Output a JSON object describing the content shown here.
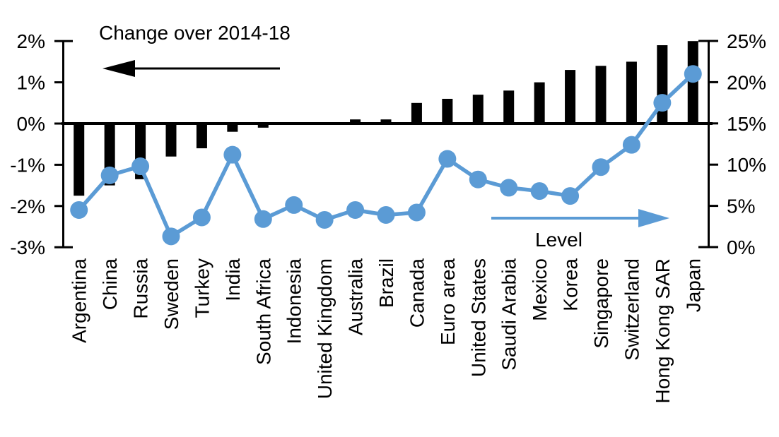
{
  "chart_data": {
    "type": "bar",
    "subtype": "combo-bar-line-dual-axis",
    "title": "Change over 2014-18",
    "line_label": "Level",
    "categories": [
      "Argentina",
      "China",
      "Russia",
      "Sweden",
      "Turkey",
      "India",
      "South Africa",
      "Indonesia",
      "United Kingdom",
      "Australia",
      "Brazil",
      "Canada",
      "Euro area",
      "United States",
      "Saudi Arabia",
      "Mexico",
      "Korea",
      "Singapore",
      "Switzerland",
      "Hong Kong SAR",
      "Japan"
    ],
    "series": [
      {
        "name": "Change over 2014-18",
        "type": "bar",
        "axis": "left",
        "color": "#000000",
        "values": [
          -1.75,
          -1.5,
          -1.35,
          -0.8,
          -0.6,
          -0.2,
          -0.1,
          0,
          0,
          0.1,
          0.1,
          0.5,
          0.6,
          0.7,
          0.8,
          1.0,
          1.3,
          1.4,
          1.5,
          1.9,
          2.0
        ]
      },
      {
        "name": "Level",
        "type": "line",
        "axis": "right",
        "color": "#5B9BD5",
        "values": [
          4.5,
          8.7,
          9.8,
          1.3,
          3.6,
          11.2,
          3.4,
          5.1,
          3.3,
          4.5,
          3.9,
          4.2,
          10.7,
          8.2,
          7.2,
          6.8,
          6.2,
          9.7,
          12.4,
          17.5,
          21.0
        ]
      }
    ],
    "left_axis": {
      "min": -3,
      "max": 2,
      "ticks": [
        {
          "label": "2%",
          "value": 2
        },
        {
          "label": "1%",
          "value": 1
        },
        {
          "label": "0%",
          "value": 0
        },
        {
          "label": "-1%",
          "value": -1
        },
        {
          "label": "-2%",
          "value": -2
        },
        {
          "label": "-3%",
          "value": -3
        }
      ]
    },
    "right_axis": {
      "min": 0,
      "max": 25,
      "ticks": [
        {
          "label": "25%",
          "value": 25
        },
        {
          "label": "20%",
          "value": 20
        },
        {
          "label": "15%",
          "value": 15
        },
        {
          "label": "10%",
          "value": 10
        },
        {
          "label": "5%",
          "value": 5
        },
        {
          "label": "0%",
          "value": 0
        }
      ]
    },
    "grid": false,
    "legend_position": "in-plot arrow annotations",
    "annotations": [
      {
        "text": "Change over 2014-18",
        "arrow": "left",
        "color": "#000000"
      },
      {
        "text": "Level",
        "arrow": "right",
        "color": "#5B9BD5"
      }
    ]
  },
  "colors": {
    "bar": "#000000",
    "line": "#5B9BD5",
    "axis": "#000000",
    "text": "#000000",
    "background": "#FFFFFF"
  }
}
